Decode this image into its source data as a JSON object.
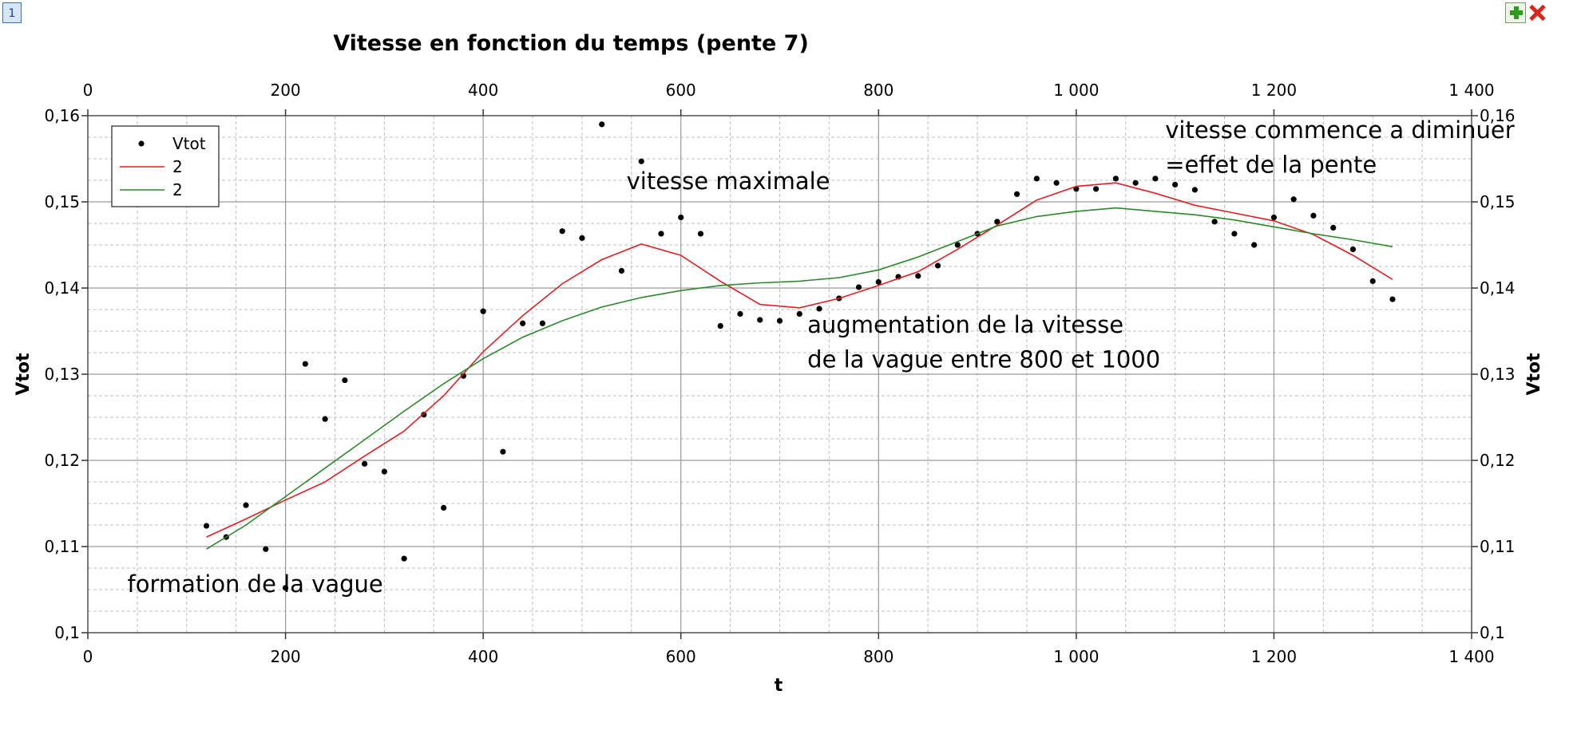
{
  "tab": {
    "label": "1"
  },
  "toolbar": {
    "add_icon": "plus-icon",
    "close_icon": "close-icon",
    "add_color": "#2f9a1f",
    "close_color": "#d9261c"
  },
  "chart_data": {
    "type": "scatter",
    "title": "Vitesse en fonction du temps (pente 7)",
    "xlabel": "t",
    "ylabel": "Vtot",
    "ylabel_right": "Vtot",
    "xlim": [
      0,
      1400
    ],
    "ylim": [
      0.1,
      0.16
    ],
    "grid": true,
    "legend_position": "top-left",
    "x_ticks": [
      {
        "v": 0,
        "label": "0"
      },
      {
        "v": 200,
        "label": "200"
      },
      {
        "v": 400,
        "label": "400"
      },
      {
        "v": 600,
        "label": "600"
      },
      {
        "v": 800,
        "label": "800"
      },
      {
        "v": 1000,
        "label": "1 000"
      },
      {
        "v": 1200,
        "label": "1 200"
      },
      {
        "v": 1400,
        "label": "1 400"
      }
    ],
    "y_ticks": [
      {
        "v": 0.1,
        "label": "0,1"
      },
      {
        "v": 0.11,
        "label": "0,11"
      },
      {
        "v": 0.12,
        "label": "0,12"
      },
      {
        "v": 0.13,
        "label": "0,13"
      },
      {
        "v": 0.14,
        "label": "0,14"
      },
      {
        "v": 0.15,
        "label": "0,15"
      },
      {
        "v": 0.16,
        "label": "0,16"
      }
    ],
    "series": [
      {
        "name": "Vtot",
        "kind": "points",
        "color": "#000000",
        "x": [
          120,
          140,
          160,
          180,
          200,
          220,
          240,
          260,
          280,
          300,
          320,
          340,
          360,
          380,
          400,
          420,
          440,
          460,
          480,
          500,
          520,
          540,
          560,
          580,
          600,
          620,
          640,
          660,
          680,
          700,
          720,
          740,
          760,
          780,
          800,
          820,
          840,
          860,
          880,
          900,
          920,
          940,
          960,
          980,
          1000,
          1020,
          1040,
          1060,
          1080,
          1100,
          1120,
          1140,
          1160,
          1180,
          1200,
          1220,
          1240,
          1260,
          1280,
          1300,
          1320
        ],
        "y": [
          0.1124,
          0.1111,
          0.1148,
          0.1097,
          0.1052,
          0.1312,
          0.1248,
          0.1293,
          0.1196,
          0.1187,
          0.1086,
          0.1253,
          0.1145,
          0.1298,
          0.1373,
          0.121,
          0.1359,
          0.1359,
          0.1466,
          0.1458,
          0.159,
          0.142,
          0.1547,
          0.1463,
          0.1482,
          0.1463,
          0.1356,
          0.137,
          0.1363,
          0.1362,
          0.137,
          0.1376,
          0.1388,
          0.1401,
          0.1407,
          0.1413,
          0.1414,
          0.1426,
          0.145,
          0.1463,
          0.1477,
          0.1509,
          0.1527,
          0.1522,
          0.1515,
          0.1515,
          0.1527,
          0.1522,
          0.1527,
          0.152,
          0.1514,
          0.1477,
          0.1463,
          0.145,
          0.1482,
          0.1503,
          0.1484,
          0.147,
          0.1445,
          0.1408,
          0.1387
        ]
      },
      {
        "name": "2",
        "kind": "line",
        "color": "#e02020",
        "x": [
          120,
          160,
          200,
          240,
          280,
          320,
          360,
          400,
          440,
          480,
          520,
          560,
          600,
          640,
          680,
          720,
          760,
          800,
          840,
          880,
          920,
          960,
          1000,
          1040,
          1080,
          1120,
          1160,
          1200,
          1240,
          1280,
          1320
        ],
        "y": [
          0.1111,
          0.1132,
          0.1154,
          0.1175,
          0.1205,
          0.1234,
          0.1275,
          0.1326,
          0.1368,
          0.1405,
          0.1433,
          0.1451,
          0.1438,
          0.1408,
          0.1381,
          0.1377,
          0.1388,
          0.1403,
          0.1419,
          0.1445,
          0.1473,
          0.1502,
          0.1518,
          0.1522,
          0.151,
          0.1496,
          0.1487,
          0.1478,
          0.1462,
          0.1438,
          0.141
        ]
      },
      {
        "name": "2",
        "kind": "line",
        "color": "#2a8a2a",
        "x": [
          120,
          160,
          200,
          240,
          280,
          320,
          360,
          400,
          440,
          480,
          520,
          560,
          600,
          640,
          680,
          720,
          760,
          800,
          840,
          880,
          920,
          960,
          1000,
          1040,
          1080,
          1120,
          1160,
          1200,
          1240,
          1280,
          1320
        ],
        "y": [
          0.1097,
          0.1125,
          0.1158,
          0.1191,
          0.1224,
          0.1257,
          0.1289,
          0.1318,
          0.1343,
          0.1362,
          0.1378,
          0.1389,
          0.1397,
          0.1403,
          0.1406,
          0.1408,
          0.1412,
          0.1421,
          0.1436,
          0.1454,
          0.1472,
          0.1483,
          0.1489,
          0.1493,
          0.1489,
          0.1485,
          0.1479,
          0.1471,
          0.1463,
          0.1456,
          0.1448
        ]
      }
    ],
    "annotations": [
      {
        "text": "vitesse maximale",
        "x": 545,
        "y": 0.1515
      },
      {
        "text": "augmentation de la vitesse",
        "x": 728,
        "y": 0.1348
      },
      {
        "text": "de la vague entre 800 et 1000",
        "x": 728,
        "y": 0.1308
      },
      {
        "text": "vitesse commence a diminuer",
        "x": 1090,
        "y": 0.1574
      },
      {
        "text": "=effet de la pente",
        "x": 1090,
        "y": 0.1534
      },
      {
        "text": "formation de la vague",
        "x": 40,
        "y": 0.1047
      }
    ]
  }
}
